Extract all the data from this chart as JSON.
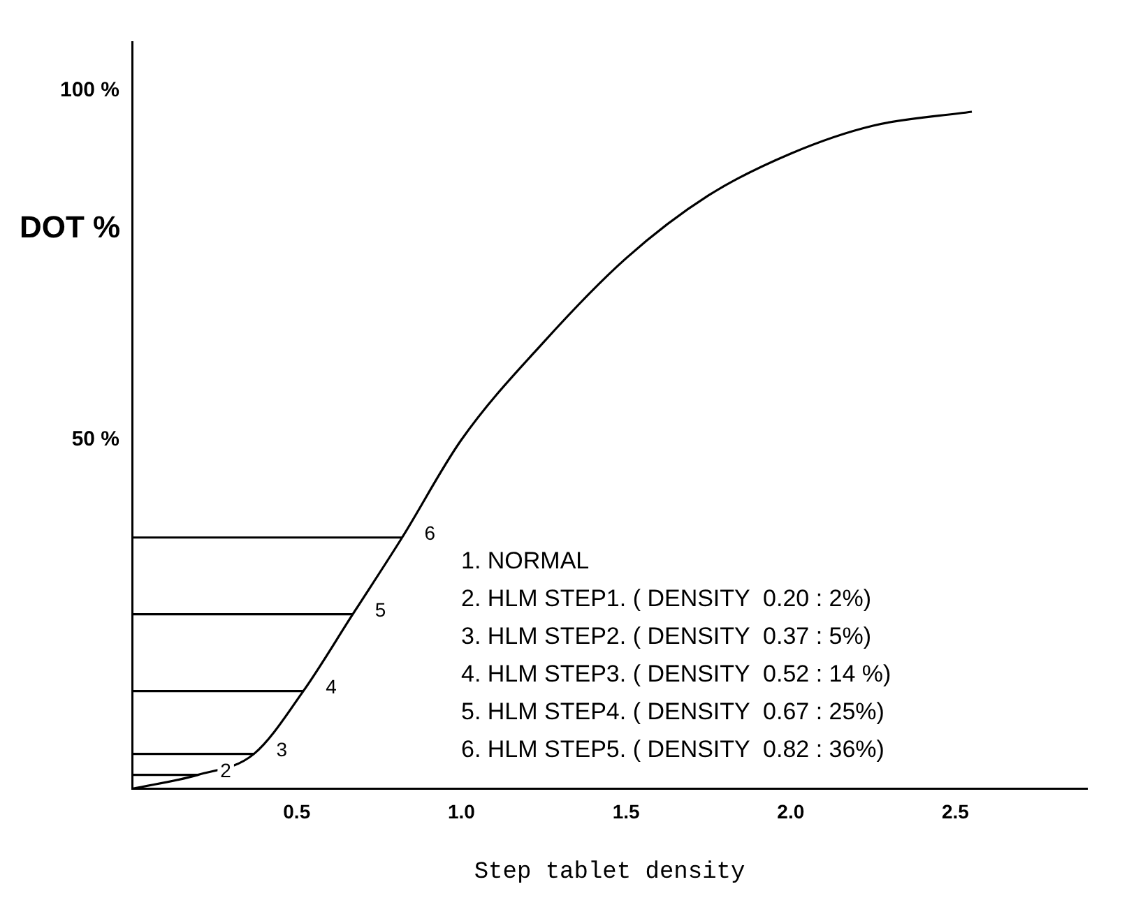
{
  "chart_data": {
    "type": "line",
    "xlabel": "Step tablet density",
    "ylabel": "DOT %",
    "xlim": [
      0,
      2.9
    ],
    "ylim": [
      0,
      107
    ],
    "xticks": [
      0.5,
      {
        "value": 1,
        "label": "1.0"
      },
      1.5,
      {
        "value": 2,
        "label": "2.0"
      },
      2.5
    ],
    "yticks": [
      {
        "value": 50,
        "label": "50 %"
      },
      {
        "value": 100,
        "label": "100 %"
      }
    ],
    "grid": false,
    "legend": false,
    "marker": "none",
    "line_style": "solid",
    "series": [
      {
        "color": "#000000",
        "x": [
          0,
          0.2,
          0.37,
          0.52,
          0.67,
          0.82,
          1.0,
          1.25,
          1.5,
          1.75,
          2.0,
          2.25,
          2.55
        ],
        "values": [
          0,
          2,
          5,
          14,
          25,
          36,
          50,
          64,
          76,
          85,
          91,
          95,
          97
        ]
      },
      {
        "color": "#000000",
        "x": [
          0,
          0.2
        ],
        "values": [
          2,
          2
        ]
      },
      {
        "color": "#000000",
        "x": [
          0,
          0.37
        ],
        "values": [
          5,
          5
        ]
      },
      {
        "color": "#000000",
        "x": [
          0,
          0.52
        ],
        "values": [
          14,
          14
        ]
      },
      {
        "color": "#000000",
        "x": [
          0,
          0.67
        ],
        "values": [
          25,
          25
        ]
      },
      {
        "color": "#000000",
        "x": [
          0,
          0.82
        ],
        "values": [
          36,
          36
        ]
      }
    ],
    "annotations": [
      {
        "text": "2",
        "x": 0.2,
        "y": 2
      },
      {
        "text": "3",
        "x": 0.37,
        "y": 5
      },
      {
        "text": "4",
        "x": 0.52,
        "y": 14
      },
      {
        "text": "5",
        "x": 0.67,
        "y": 25
      },
      {
        "text": "6",
        "x": 0.82,
        "y": 36
      },
      "1. NORMAL",
      "2. HLM STEP1. ( DENSITY  0.20 : 2%)",
      "3. HLM STEP2. ( DENSITY  0.37 : 5%)",
      "4. HLM STEP3. ( DENSITY  0.52 : 14 %)",
      "5. HLM STEP4. ( DENSITY  0.67 : 25%)",
      "6. HLM STEP5. ( DENSITY  0.82 : 36%)"
    ]
  }
}
